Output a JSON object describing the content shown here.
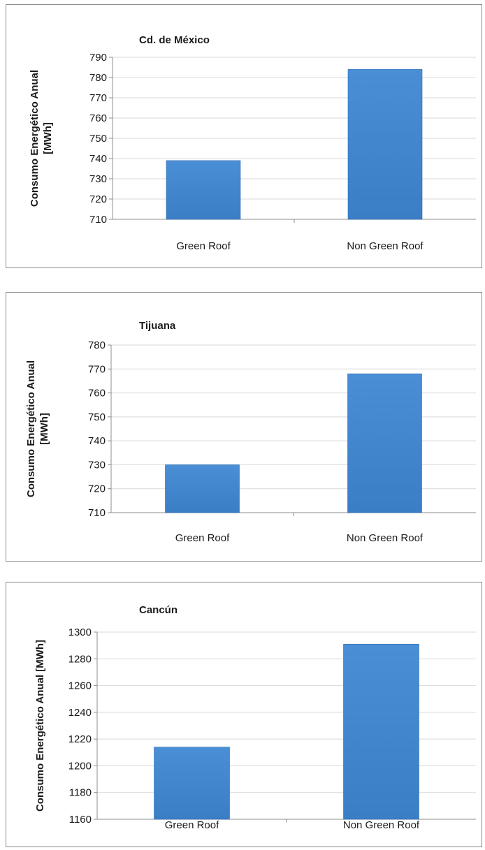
{
  "chart_data": [
    {
      "type": "bar",
      "title": "Cd. de México",
      "ylabel_lines": [
        "Consumo Energético Anual",
        "[MWh]"
      ],
      "categories": [
        "Green Roof",
        "Non Green Roof"
      ],
      "values": [
        739,
        784
      ],
      "ylim": [
        710,
        790
      ],
      "yticks": [
        710,
        720,
        730,
        740,
        750,
        760,
        770,
        780,
        790
      ],
      "grid": true,
      "legend": "none",
      "bar_color": "#3a7ec6"
    },
    {
      "type": "bar",
      "title": "Tijuana",
      "ylabel_lines": [
        "Consumo Energético Anual",
        "[MWh]"
      ],
      "categories": [
        "Green Roof",
        "Non Green Roof"
      ],
      "values": [
        730,
        768
      ],
      "ylim": [
        710,
        780
      ],
      "yticks": [
        710,
        720,
        730,
        740,
        750,
        760,
        770,
        780
      ],
      "grid": true,
      "legend": "none",
      "bar_color": "#3a7ec6"
    },
    {
      "type": "bar",
      "title": "Cancún",
      "ylabel_lines": [
        "Consumo Energético Anual [MWh]"
      ],
      "categories": [
        "Green Roof",
        "Non Green Roof"
      ],
      "values": [
        1214,
        1291
      ],
      "ylim": [
        1160,
        1300
      ],
      "yticks": [
        1160,
        1180,
        1200,
        1220,
        1240,
        1260,
        1280,
        1300
      ],
      "grid": true,
      "legend": "none",
      "bar_color": "#3a7ec6"
    }
  ]
}
